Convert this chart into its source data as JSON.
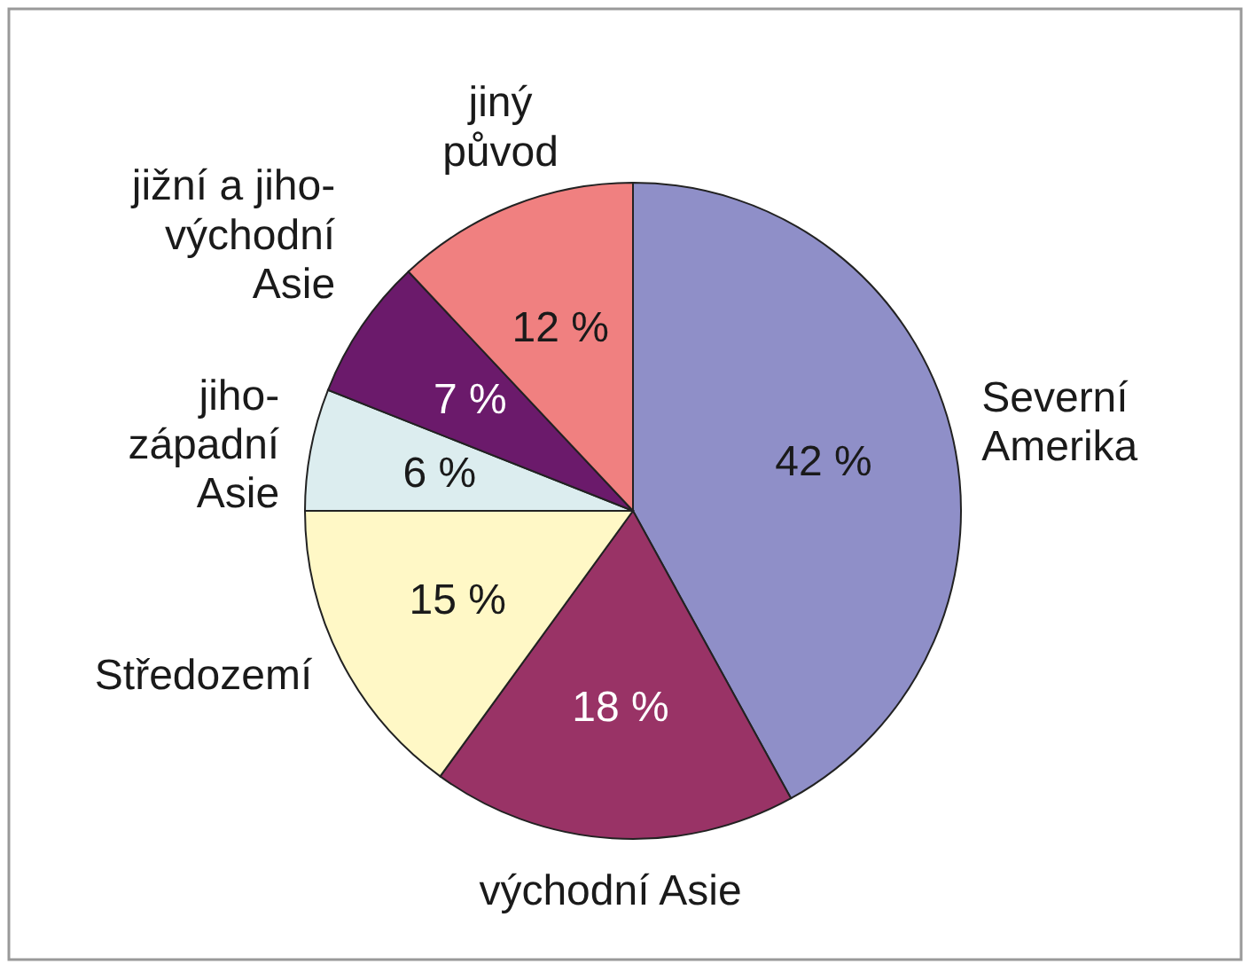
{
  "chart_data": {
    "type": "pie",
    "categories": [
      "Severní\nAmerika",
      "východní Asie",
      "Středozemí",
      "jiho-\nzápadní\nAsie",
      "jižní a jiho-\nvýchodní\nAsie",
      "jiný\npůvod"
    ],
    "values": [
      42,
      18,
      15,
      6,
      7,
      12
    ],
    "colors": [
      "#8f8fc8",
      "#993366",
      "#fff8c6",
      "#dcedef",
      "#6b1a6b",
      "#f08080"
    ],
    "value_labels": [
      "42 %",
      "18 %",
      "15 %",
      "6 %",
      "7 %",
      "12 %"
    ]
  }
}
